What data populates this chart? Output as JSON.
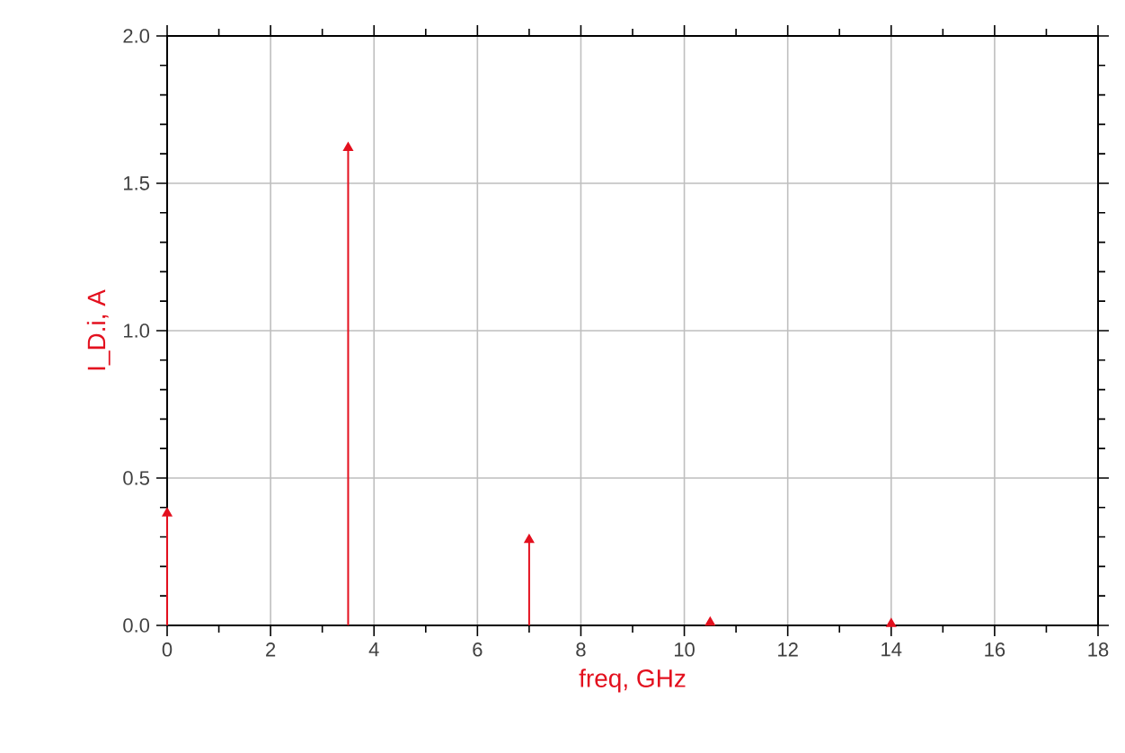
{
  "chart_data": {
    "type": "lollipop",
    "xlabel": "freq, GHz",
    "ylabel": "I_D.i, A",
    "x": [
      0,
      3.5,
      7,
      10.5,
      14
    ],
    "series": [
      {
        "color": "#e3101e",
        "values": [
          0.38,
          1.62,
          0.29,
          0.01,
          0.005
        ]
      }
    ],
    "xlim": [
      0,
      18
    ],
    "xticks": [
      0,
      2,
      4,
      6,
      8,
      10,
      12,
      14,
      16,
      18
    ],
    "ylim": [
      0,
      2
    ],
    "yticks": [
      {
        "value": 0,
        "label": "0.0"
      },
      {
        "value": 0.5,
        "label": "0.5"
      },
      {
        "value": 1,
        "label": "1.0"
      },
      {
        "value": 1.5,
        "label": "1.5"
      },
      {
        "value": 2,
        "label": "2.0"
      }
    ],
    "grid": true,
    "marker": "triangle"
  }
}
